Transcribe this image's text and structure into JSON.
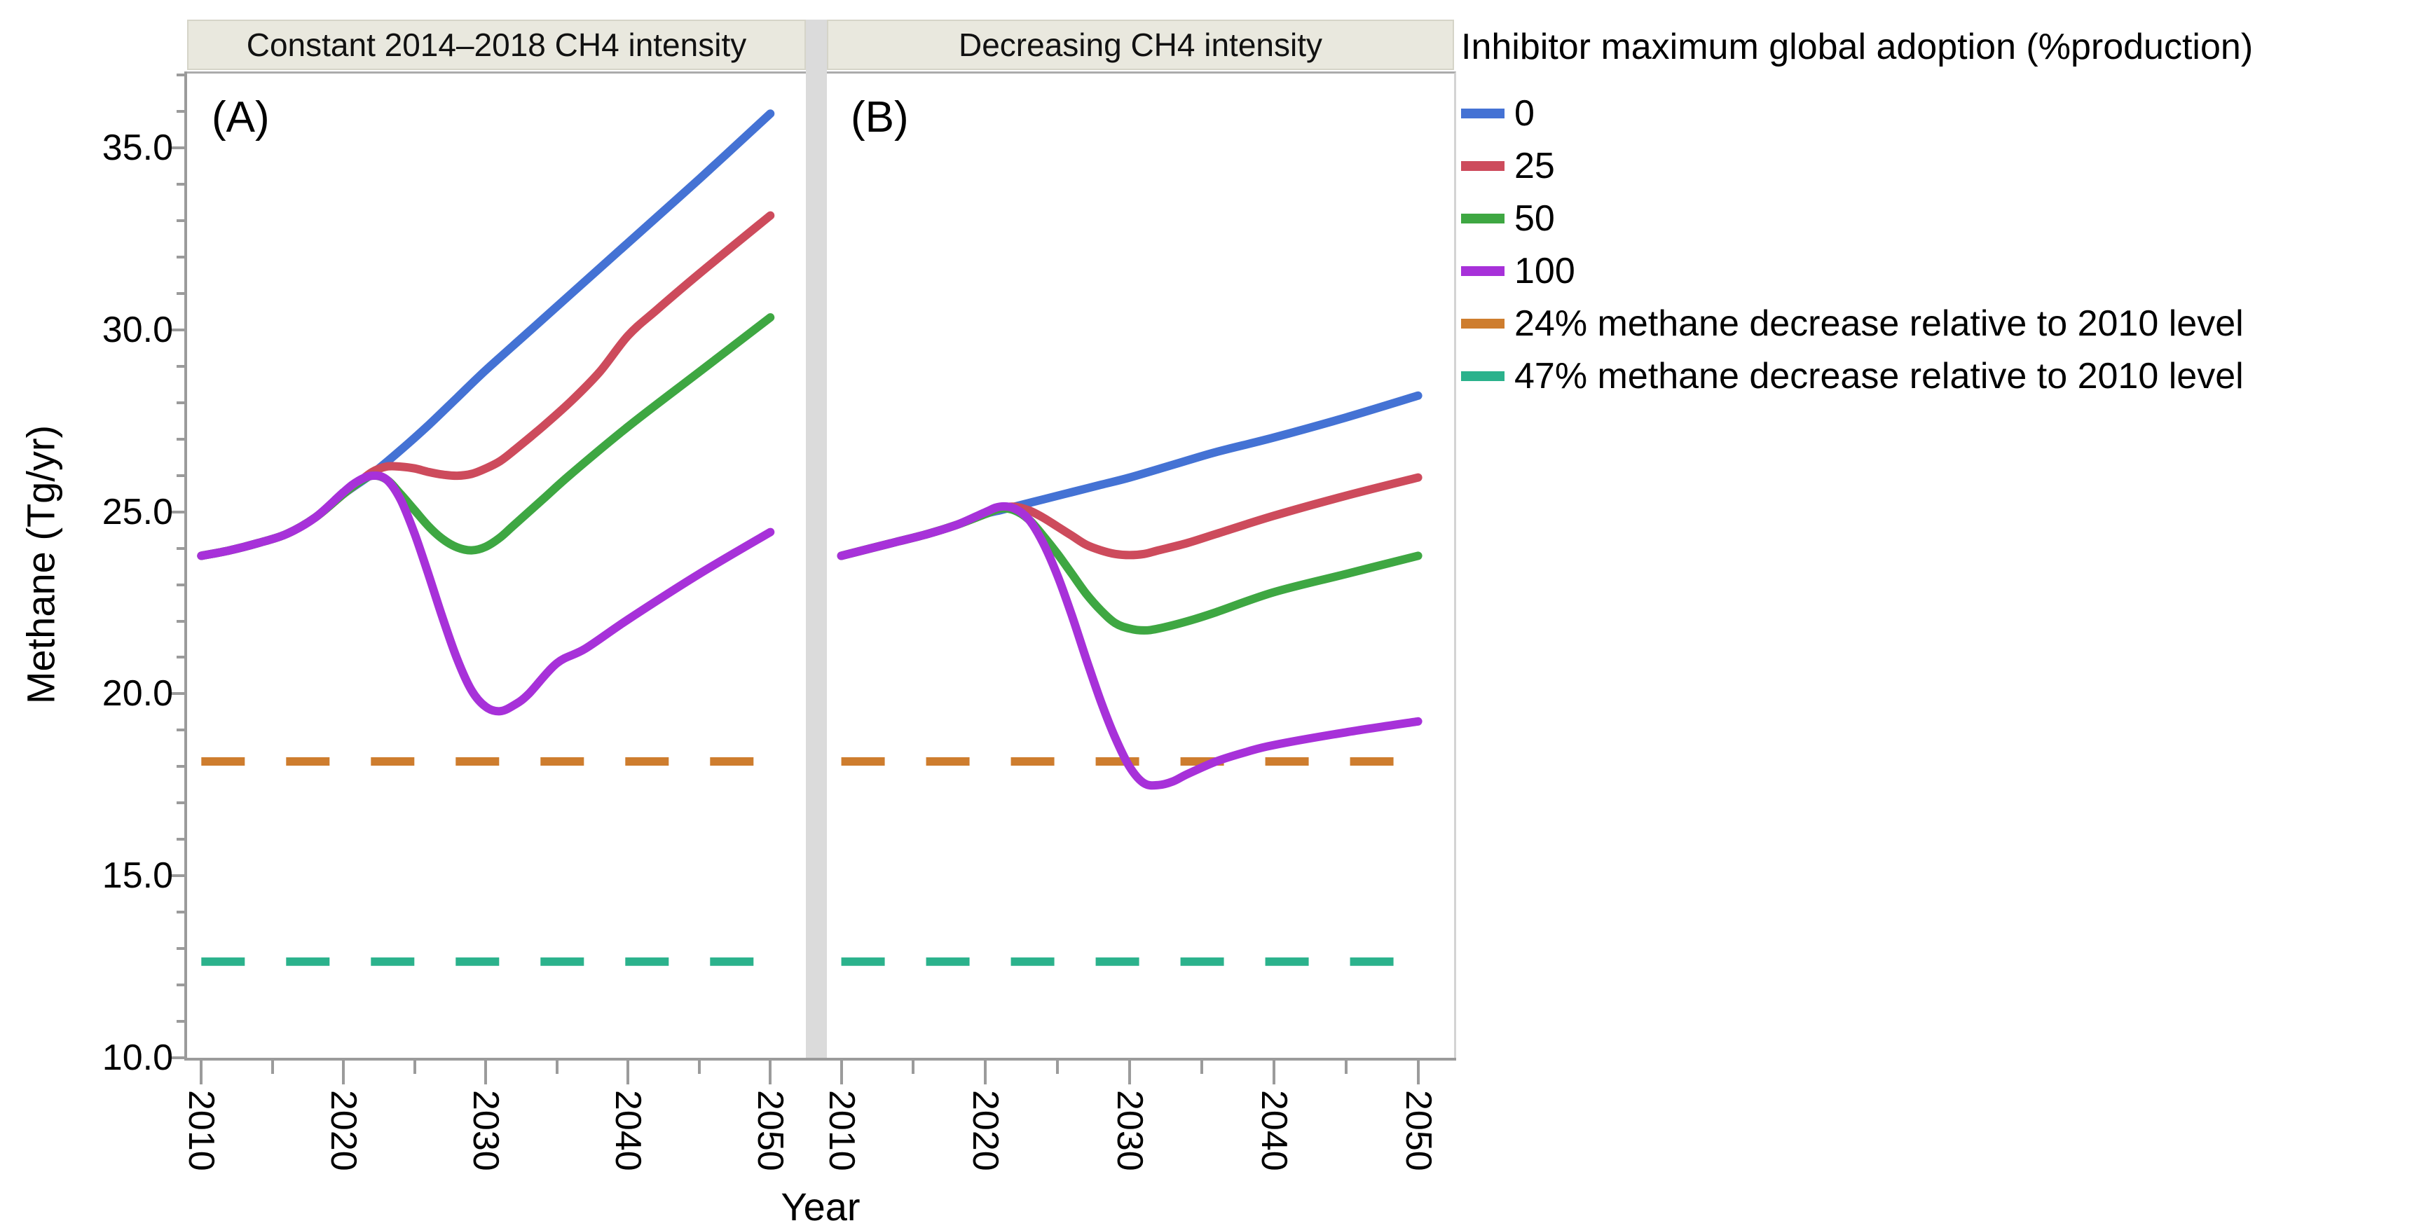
{
  "figure": {
    "panel_a_header": "Constant 2014–2018 CH4 intensity",
    "panel_b_header": "Decreasing CH4 intensity",
    "panel_a_label": "(A)",
    "panel_b_label": "(B)",
    "y_axis_title": "Methane (Tg/yr)",
    "x_axis_title": "Year"
  },
  "legend": {
    "title": "Inhibitor maximum global adoption (%production)",
    "items": [
      {
        "label": "0",
        "color": "#4472D4",
        "dashed": false
      },
      {
        "label": "25",
        "color": "#CD4B5C",
        "dashed": false
      },
      {
        "label": "50",
        "color": "#3EA742",
        "dashed": false
      },
      {
        "label": "100",
        "color": "#A731D9",
        "dashed": false
      },
      {
        "label": "24% methane decrease relative to 2010 level",
        "color": "#CE7D2E",
        "dashed": true
      },
      {
        "label": "47% methane decrease relative to 2010 level",
        "color": "#2BB28C",
        "dashed": true
      }
    ]
  },
  "chart_data": {
    "type": "line",
    "xlabel": "Year",
    "ylabel": "Methane (Tg/yr)",
    "xlim": [
      2009,
      2052.5
    ],
    "ylim": [
      10,
      37.1
    ],
    "grid": false,
    "legend_position": "right",
    "y_ticks": [
      {
        "value": 35,
        "label": "35.0"
      },
      {
        "value": 30,
        "label": "30.0"
      },
      {
        "value": 25,
        "label": "25.0"
      },
      {
        "value": 20,
        "label": "20.0"
      },
      {
        "value": 15,
        "label": "15.0"
      },
      {
        "value": 10,
        "label": "10.0"
      }
    ],
    "x_ticks": [
      {
        "value": 2010,
        "label": "2010"
      },
      {
        "value": 2020,
        "label": "2020"
      },
      {
        "value": 2030,
        "label": "2030"
      },
      {
        "value": 2040,
        "label": "2040"
      },
      {
        "value": 2050,
        "label": "2050"
      }
    ],
    "x_minor_ticks": [
      2015,
      2025,
      2035,
      2045
    ],
    "reference_lines": [
      {
        "label": "24% methane decrease relative to 2010 level",
        "value": 18.2,
        "color": "#CE7D2E",
        "span": [
          2010,
          2050
        ]
      },
      {
        "label": "47% methane decrease relative to 2010 level",
        "value": 12.7,
        "color": "#2BB28C",
        "span": [
          2010,
          2050
        ]
      }
    ],
    "panels": [
      {
        "id": "A",
        "title": "Constant 2014–2018 CH4 intensity",
        "series": [
          {
            "name": "0",
            "color": "#4472D4",
            "points": [
              [
                2010,
                23.85
              ],
              [
                2012,
                24.0
              ],
              [
                2014,
                24.2
              ],
              [
                2016,
                24.45
              ],
              [
                2018,
                24.9
              ],
              [
                2020,
                25.55
              ],
              [
                2022,
                26.1
              ],
              [
                2024,
                26.75
              ],
              [
                2026,
                27.45
              ],
              [
                2028,
                28.2
              ],
              [
                2030,
                28.95
              ],
              [
                2033,
                30.0
              ],
              [
                2036,
                31.05
              ],
              [
                2040,
                32.45
              ],
              [
                2045,
                34.2
              ],
              [
                2050,
                36.0
              ]
            ]
          },
          {
            "name": "25",
            "color": "#CD4B5C",
            "points": [
              [
                2010,
                23.85
              ],
              [
                2012,
                24.0
              ],
              [
                2014,
                24.2
              ],
              [
                2016,
                24.45
              ],
              [
                2018,
                24.9
              ],
              [
                2020,
                25.55
              ],
              [
                2021,
                25.85
              ],
              [
                2022,
                26.15
              ],
              [
                2023,
                26.3
              ],
              [
                2024,
                26.3
              ],
              [
                2025,
                26.25
              ],
              [
                2026,
                26.15
              ],
              [
                2027,
                26.08
              ],
              [
                2028,
                26.05
              ],
              [
                2029,
                26.1
              ],
              [
                2030,
                26.25
              ],
              [
                2031,
                26.45
              ],
              [
                2032,
                26.75
              ],
              [
                2034,
                27.4
              ],
              [
                2036,
                28.1
              ],
              [
                2038,
                28.9
              ],
              [
                2040,
                29.9
              ],
              [
                2042,
                30.6
              ],
              [
                2045,
                31.6
              ],
              [
                2050,
                33.2
              ]
            ]
          },
          {
            "name": "50",
            "color": "#3EA742",
            "points": [
              [
                2010,
                23.85
              ],
              [
                2012,
                24.0
              ],
              [
                2014,
                24.2
              ],
              [
                2016,
                24.45
              ],
              [
                2018,
                24.9
              ],
              [
                2020,
                25.55
              ],
              [
                2021,
                25.85
              ],
              [
                2022,
                26.05
              ],
              [
                2023,
                25.95
              ],
              [
                2024,
                25.55
              ],
              [
                2025,
                25.1
              ],
              [
                2026,
                24.65
              ],
              [
                2027,
                24.3
              ],
              [
                2028,
                24.08
              ],
              [
                2029,
                24.0
              ],
              [
                2030,
                24.1
              ],
              [
                2031,
                24.35
              ],
              [
                2032,
                24.7
              ],
              [
                2034,
                25.4
              ],
              [
                2036,
                26.1
              ],
              [
                2040,
                27.4
              ],
              [
                2045,
                28.9
              ],
              [
                2050,
                30.4
              ]
            ]
          },
          {
            "name": "100",
            "color": "#A731D9",
            "points": [
              [
                2010,
                23.85
              ],
              [
                2012,
                24.0
              ],
              [
                2014,
                24.2
              ],
              [
                2016,
                24.45
              ],
              [
                2018,
                24.9
              ],
              [
                2020,
                25.6
              ],
              [
                2021,
                25.9
              ],
              [
                2022,
                26.05
              ],
              [
                2023,
                25.95
              ],
              [
                2024,
                25.4
              ],
              [
                2025,
                24.45
              ],
              [
                2026,
                23.3
              ],
              [
                2027,
                22.1
              ],
              [
                2028,
                21.0
              ],
              [
                2029,
                20.15
              ],
              [
                2030,
                19.7
              ],
              [
                2031,
                19.58
              ],
              [
                2032,
                19.75
              ],
              [
                2033,
                20.05
              ],
              [
                2035,
                20.9
              ],
              [
                2037,
                21.3
              ],
              [
                2040,
                22.1
              ],
              [
                2045,
                23.35
              ],
              [
                2050,
                24.5
              ]
            ]
          }
        ]
      },
      {
        "id": "B",
        "title": "Decreasing CH4 intensity",
        "series": [
          {
            "name": "0",
            "color": "#4472D4",
            "points": [
              [
                2010,
                23.85
              ],
              [
                2012,
                24.05
              ],
              [
                2014,
                24.25
              ],
              [
                2016,
                24.45
              ],
              [
                2018,
                24.7
              ],
              [
                2020,
                25.0
              ],
              [
                2021,
                25.1
              ],
              [
                2022,
                25.2
              ],
              [
                2024,
                25.4
              ],
              [
                2026,
                25.6
              ],
              [
                2028,
                25.8
              ],
              [
                2030,
                26.0
              ],
              [
                2033,
                26.35
              ],
              [
                2036,
                26.7
              ],
              [
                2040,
                27.1
              ],
              [
                2045,
                27.65
              ],
              [
                2050,
                28.25
              ]
            ]
          },
          {
            "name": "25",
            "color": "#CD4B5C",
            "points": [
              [
                2010,
                23.85
              ],
              [
                2012,
                24.05
              ],
              [
                2014,
                24.25
              ],
              [
                2016,
                24.45
              ],
              [
                2018,
                24.7
              ],
              [
                2020,
                25.0
              ],
              [
                2021,
                25.15
              ],
              [
                2022,
                25.2
              ],
              [
                2023,
                25.1
              ],
              [
                2024,
                24.9
              ],
              [
                2025,
                24.65
              ],
              [
                2026,
                24.4
              ],
              [
                2027,
                24.15
              ],
              [
                2028,
                24.0
              ],
              [
                2029,
                23.9
              ],
              [
                2030,
                23.87
              ],
              [
                2031,
                23.9
              ],
              [
                2032,
                24.0
              ],
              [
                2034,
                24.2
              ],
              [
                2036,
                24.45
              ],
              [
                2040,
                24.95
              ],
              [
                2045,
                25.5
              ],
              [
                2050,
                26.0
              ]
            ]
          },
          {
            "name": "50",
            "color": "#3EA742",
            "points": [
              [
                2010,
                23.85
              ],
              [
                2012,
                24.05
              ],
              [
                2014,
                24.25
              ],
              [
                2016,
                24.45
              ],
              [
                2018,
                24.7
              ],
              [
                2020,
                25.0
              ],
              [
                2021,
                25.15
              ],
              [
                2022,
                25.1
              ],
              [
                2023,
                24.85
              ],
              [
                2024,
                24.4
              ],
              [
                2025,
                23.9
              ],
              [
                2026,
                23.35
              ],
              [
                2027,
                22.8
              ],
              [
                2028,
                22.35
              ],
              [
                2029,
                22.0
              ],
              [
                2030,
                21.85
              ],
              [
                2031,
                21.8
              ],
              [
                2032,
                21.85
              ],
              [
                2034,
                22.05
              ],
              [
                2036,
                22.3
              ],
              [
                2040,
                22.85
              ],
              [
                2045,
                23.35
              ],
              [
                2050,
                23.85
              ]
            ]
          },
          {
            "name": "100",
            "color": "#A731D9",
            "points": [
              [
                2010,
                23.85
              ],
              [
                2012,
                24.05
              ],
              [
                2014,
                24.25
              ],
              [
                2016,
                24.45
              ],
              [
                2018,
                24.7
              ],
              [
                2020,
                25.05
              ],
              [
                2021,
                25.2
              ],
              [
                2022,
                25.15
              ],
              [
                2023,
                24.85
              ],
              [
                2024,
                24.2
              ],
              [
                2025,
                23.3
              ],
              [
                2026,
                22.2
              ],
              [
                2027,
                21.0
              ],
              [
                2028,
                19.85
              ],
              [
                2029,
                18.85
              ],
              [
                2030,
                18.05
              ],
              [
                2031,
                17.6
              ],
              [
                2032,
                17.55
              ],
              [
                2033,
                17.65
              ],
              [
                2034,
                17.85
              ],
              [
                2036,
                18.2
              ],
              [
                2038,
                18.45
              ],
              [
                2040,
                18.65
              ],
              [
                2045,
                19.0
              ],
              [
                2050,
                19.3
              ]
            ]
          }
        ]
      }
    ]
  }
}
